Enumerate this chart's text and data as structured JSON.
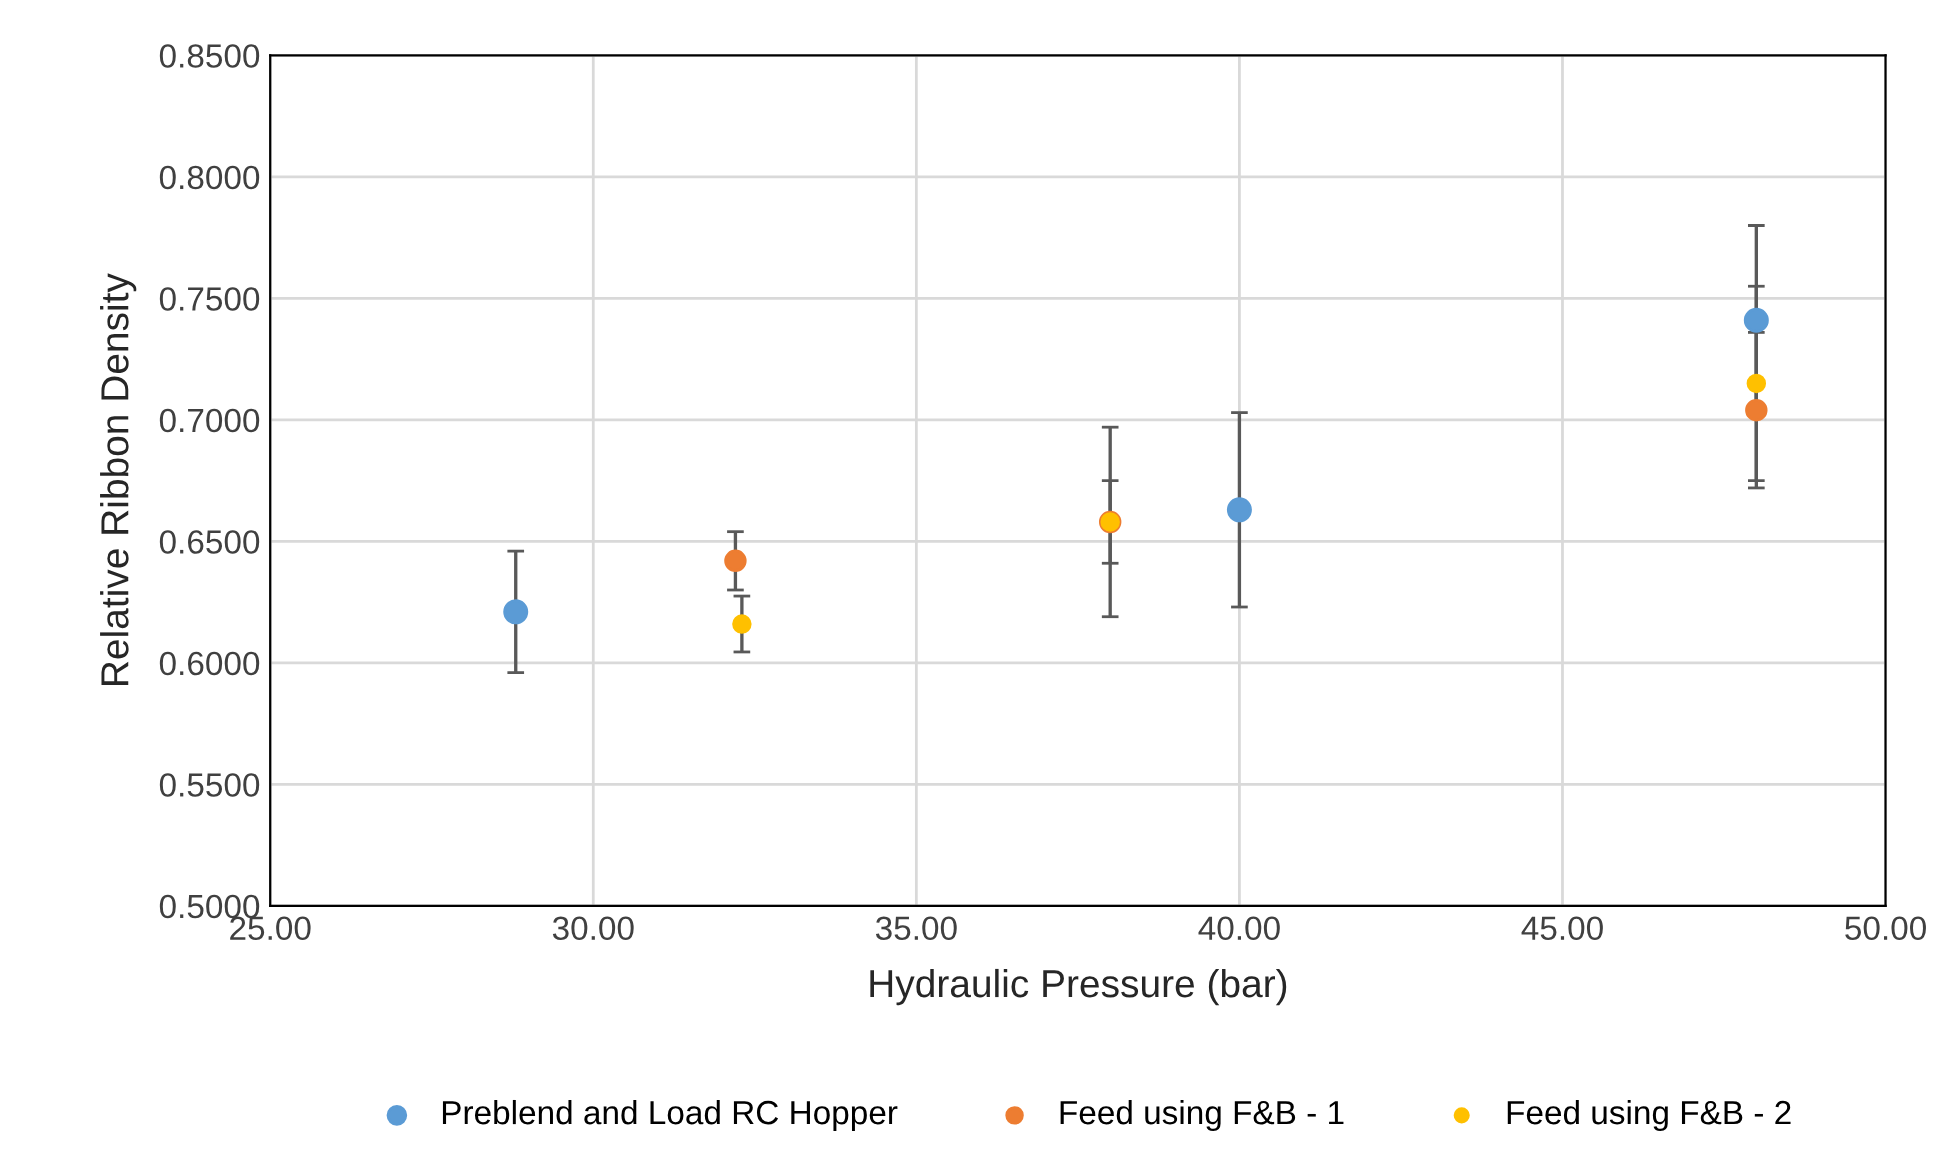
{
  "chart_data": {
    "type": "scatter",
    "xlabel": "Hydraulic Pressure (bar)",
    "ylabel": "Relative Ribbon Density",
    "xlim": [
      25,
      50
    ],
    "xticks": [
      {
        "value": 25,
        "label": "25.00"
      },
      {
        "value": 30,
        "label": "30.00"
      },
      {
        "value": 35,
        "label": "35.00"
      },
      {
        "value": 40,
        "label": "40.00"
      },
      {
        "value": 45,
        "label": "45.00"
      },
      {
        "value": 50,
        "label": "50.00"
      }
    ],
    "ylim": [
      0.5,
      0.85
    ],
    "yticks": [
      {
        "value": 0.5,
        "label": "0.5000"
      },
      {
        "value": 0.55,
        "label": "0.5500"
      },
      {
        "value": 0.6,
        "label": "0.6000"
      },
      {
        "value": 0.65,
        "label": "0.6500"
      },
      {
        "value": 0.7,
        "label": "0.7000"
      },
      {
        "value": 0.75,
        "label": "0.7500"
      },
      {
        "value": 0.8,
        "label": "0.8000"
      },
      {
        "value": 0.85,
        "label": "0.8500"
      }
    ],
    "grid": true,
    "legend": "bottom",
    "marker": "circle",
    "series": [
      {
        "name": "Preblend and Load RC Hopper",
        "color": "#5b9bd5",
        "x": [
          28.8,
          40.0,
          48.0
        ],
        "values": [
          0.621,
          0.663,
          0.741
        ],
        "errors": [
          0.025,
          0.04,
          0.039
        ]
      },
      {
        "name": "Feed using F&B - 1",
        "color": "#ed7d31",
        "x": [
          32.2,
          38.0,
          48.0
        ],
        "values": [
          0.642,
          0.658,
          0.704
        ],
        "errors": [
          0.012,
          0.017,
          0.032
        ]
      },
      {
        "name": "Feed using F&B - 2",
        "color": "#ffc000",
        "x": [
          32.3,
          38.0,
          48.0
        ],
        "values": [
          0.616,
          0.658,
          0.715
        ],
        "errors": [
          0.0115,
          0.039,
          0.04
        ]
      }
    ]
  }
}
